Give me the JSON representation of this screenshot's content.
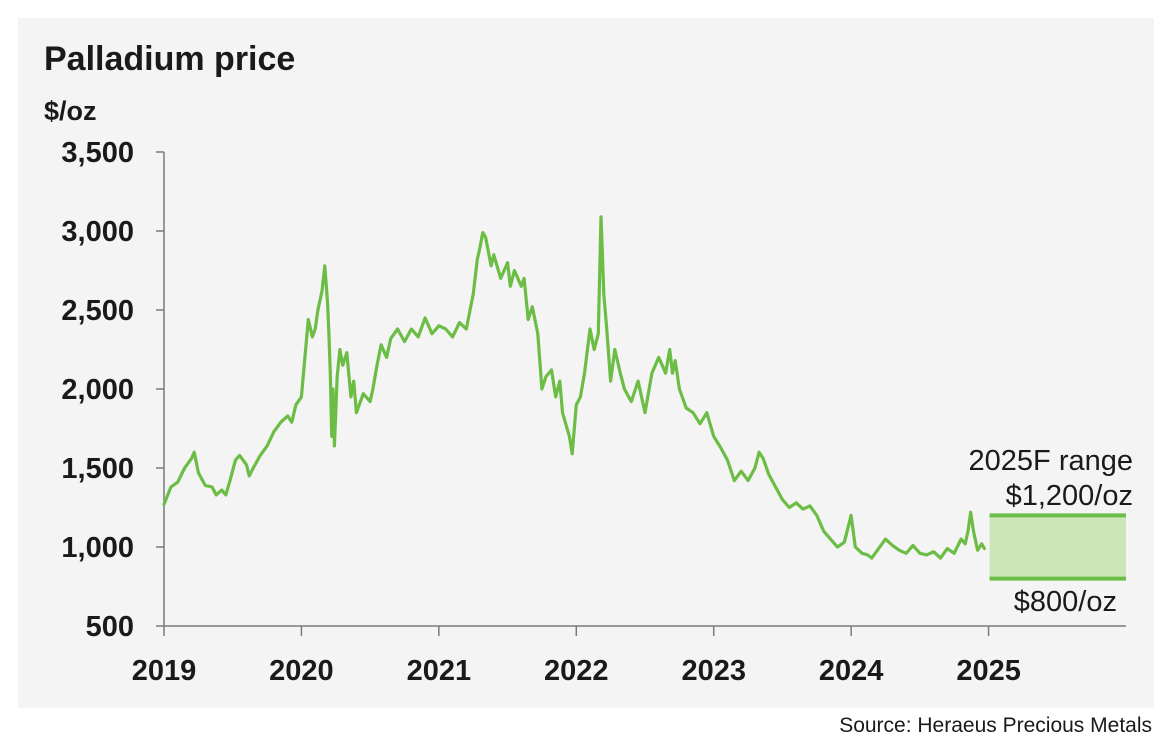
{
  "chart_data": {
    "type": "line",
    "title": "Palladium price",
    "ylabel": "$/oz",
    "xlabel": "",
    "ylim": [
      500,
      3500
    ],
    "xlim": [
      2019,
      2026
    ],
    "yticks": [
      "500",
      "1,000",
      "1,500",
      "2,000",
      "2,500",
      "3,000",
      "3,500"
    ],
    "xticks": [
      "2019",
      "2020",
      "2021",
      "2022",
      "2023",
      "2024",
      "2025"
    ],
    "grid": false,
    "line_color": "#6cbd45",
    "series": [
      {
        "values": [
          [
            2019.0,
            1270
          ],
          [
            2019.05,
            1380
          ],
          [
            2019.1,
            1410
          ],
          [
            2019.15,
            1500
          ],
          [
            2019.2,
            1560
          ],
          [
            2019.22,
            1600
          ],
          [
            2019.25,
            1470
          ],
          [
            2019.3,
            1390
          ],
          [
            2019.35,
            1380
          ],
          [
            2019.38,
            1330
          ],
          [
            2019.42,
            1360
          ],
          [
            2019.45,
            1330
          ],
          [
            2019.48,
            1420
          ],
          [
            2019.52,
            1550
          ],
          [
            2019.55,
            1580
          ],
          [
            2019.6,
            1520
          ],
          [
            2019.62,
            1450
          ],
          [
            2019.65,
            1500
          ],
          [
            2019.7,
            1580
          ],
          [
            2019.75,
            1640
          ],
          [
            2019.8,
            1730
          ],
          [
            2019.85,
            1790
          ],
          [
            2019.9,
            1830
          ],
          [
            2019.93,
            1790
          ],
          [
            2019.96,
            1900
          ],
          [
            2020.0,
            1950
          ],
          [
            2020.02,
            2150
          ],
          [
            2020.05,
            2440
          ],
          [
            2020.08,
            2330
          ],
          [
            2020.1,
            2380
          ],
          [
            2020.12,
            2500
          ],
          [
            2020.15,
            2620
          ],
          [
            2020.17,
            2780
          ],
          [
            2020.19,
            2550
          ],
          [
            2020.2,
            2350
          ],
          [
            2020.21,
            2100
          ],
          [
            2020.22,
            1700
          ],
          [
            2020.23,
            2000
          ],
          [
            2020.24,
            1640
          ],
          [
            2020.26,
            2080
          ],
          [
            2020.28,
            2250
          ],
          [
            2020.3,
            2150
          ],
          [
            2020.33,
            2230
          ],
          [
            2020.36,
            1950
          ],
          [
            2020.38,
            2050
          ],
          [
            2020.4,
            1850
          ],
          [
            2020.45,
            1970
          ],
          [
            2020.5,
            1920
          ],
          [
            2020.52,
            2000
          ],
          [
            2020.55,
            2150
          ],
          [
            2020.58,
            2280
          ],
          [
            2020.62,
            2200
          ],
          [
            2020.65,
            2320
          ],
          [
            2020.7,
            2380
          ],
          [
            2020.75,
            2300
          ],
          [
            2020.8,
            2380
          ],
          [
            2020.85,
            2330
          ],
          [
            2020.9,
            2450
          ],
          [
            2020.95,
            2350
          ],
          [
            2021.0,
            2400
          ],
          [
            2021.05,
            2380
          ],
          [
            2021.1,
            2330
          ],
          [
            2021.15,
            2420
          ],
          [
            2021.2,
            2380
          ],
          [
            2021.25,
            2600
          ],
          [
            2021.28,
            2820
          ],
          [
            2021.3,
            2900
          ],
          [
            2021.32,
            2990
          ],
          [
            2021.34,
            2960
          ],
          [
            2021.38,
            2780
          ],
          [
            2021.4,
            2850
          ],
          [
            2021.45,
            2700
          ],
          [
            2021.5,
            2800
          ],
          [
            2021.52,
            2650
          ],
          [
            2021.55,
            2750
          ],
          [
            2021.6,
            2650
          ],
          [
            2021.62,
            2700
          ],
          [
            2021.65,
            2440
          ],
          [
            2021.68,
            2520
          ],
          [
            2021.72,
            2350
          ],
          [
            2021.75,
            2000
          ],
          [
            2021.78,
            2080
          ],
          [
            2021.82,
            2120
          ],
          [
            2021.85,
            1950
          ],
          [
            2021.88,
            2050
          ],
          [
            2021.9,
            1850
          ],
          [
            2021.95,
            1700
          ],
          [
            2021.97,
            1590
          ],
          [
            2022.0,
            1900
          ],
          [
            2022.03,
            1950
          ],
          [
            2022.06,
            2100
          ],
          [
            2022.1,
            2380
          ],
          [
            2022.13,
            2250
          ],
          [
            2022.16,
            2350
          ],
          [
            2022.18,
            3090
          ],
          [
            2022.19,
            2850
          ],
          [
            2022.2,
            2600
          ],
          [
            2022.22,
            2400
          ],
          [
            2022.25,
            2050
          ],
          [
            2022.28,
            2250
          ],
          [
            2022.32,
            2100
          ],
          [
            2022.35,
            2000
          ],
          [
            2022.4,
            1920
          ],
          [
            2022.45,
            2050
          ],
          [
            2022.5,
            1850
          ],
          [
            2022.55,
            2100
          ],
          [
            2022.6,
            2200
          ],
          [
            2022.65,
            2100
          ],
          [
            2022.68,
            2250
          ],
          [
            2022.7,
            2100
          ],
          [
            2022.72,
            2180
          ],
          [
            2022.75,
            2000
          ],
          [
            2022.8,
            1880
          ],
          [
            2022.85,
            1850
          ],
          [
            2022.9,
            1780
          ],
          [
            2022.95,
            1850
          ],
          [
            2023.0,
            1700
          ],
          [
            2023.05,
            1630
          ],
          [
            2023.1,
            1550
          ],
          [
            2023.15,
            1420
          ],
          [
            2023.2,
            1480
          ],
          [
            2023.25,
            1420
          ],
          [
            2023.3,
            1500
          ],
          [
            2023.33,
            1600
          ],
          [
            2023.36,
            1560
          ],
          [
            2023.4,
            1460
          ],
          [
            2023.45,
            1380
          ],
          [
            2023.5,
            1300
          ],
          [
            2023.55,
            1250
          ],
          [
            2023.6,
            1280
          ],
          [
            2023.65,
            1240
          ],
          [
            2023.7,
            1260
          ],
          [
            2023.75,
            1200
          ],
          [
            2023.8,
            1100
          ],
          [
            2023.85,
            1050
          ],
          [
            2023.9,
            1000
          ],
          [
            2023.95,
            1030
          ],
          [
            2024.0,
            1200
          ],
          [
            2024.03,
            1000
          ],
          [
            2024.08,
            960
          ],
          [
            2024.12,
            950
          ],
          [
            2024.15,
            930
          ],
          [
            2024.2,
            990
          ],
          [
            2024.25,
            1050
          ],
          [
            2024.3,
            1010
          ],
          [
            2024.35,
            980
          ],
          [
            2024.4,
            960
          ],
          [
            2024.45,
            1010
          ],
          [
            2024.5,
            960
          ],
          [
            2024.55,
            950
          ],
          [
            2024.6,
            970
          ],
          [
            2024.65,
            930
          ],
          [
            2024.7,
            990
          ],
          [
            2024.75,
            960
          ],
          [
            2024.8,
            1050
          ],
          [
            2024.83,
            1020
          ],
          [
            2024.85,
            1100
          ],
          [
            2024.87,
            1220
          ],
          [
            2024.89,
            1100
          ],
          [
            2024.92,
            980
          ],
          [
            2024.95,
            1020
          ],
          [
            2024.97,
            990
          ]
        ]
      }
    ],
    "forecast_range": {
      "label": "2025F range",
      "high": 1200,
      "low": 800,
      "high_label": "$1,200/oz",
      "low_label": "$800/oz",
      "x_range": [
        2025,
        2026
      ]
    }
  },
  "source": "Source: Heraeus Precious Metals"
}
